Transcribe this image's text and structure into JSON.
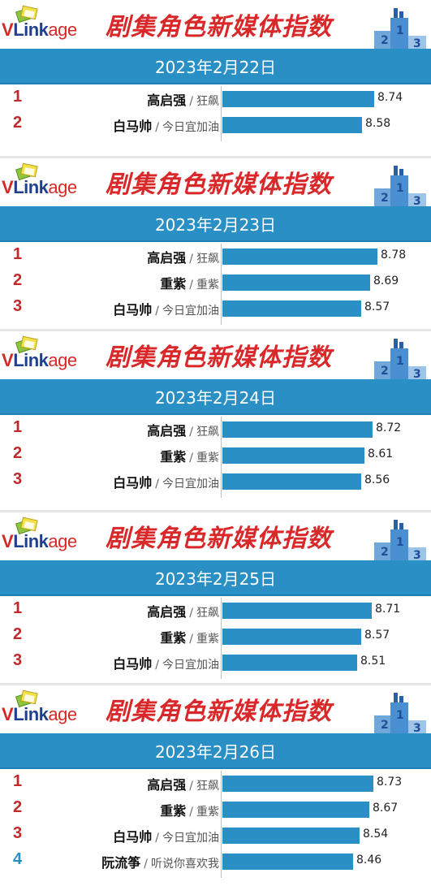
{
  "header": {
    "logo_v": "V",
    "logo_link": "Link",
    "logo_age": "age",
    "title": "剧集角色新媒体指数"
  },
  "colors": {
    "bar": "#2a8fc4",
    "date_bar": "#2a8fc4",
    "title": "#d9282a",
    "rank_red": "#c0282a",
    "rank_blue": "#2a8fc4"
  },
  "chart_data": [
    {
      "type": "bar",
      "orientation": "horizontal",
      "title": "剧集角色新媒体指数",
      "date": "2023年2月22日",
      "ranks": [
        "1",
        "2"
      ],
      "categories": [
        "高启强 / 狂飙",
        "白马帅 / 今日宜加油"
      ],
      "names": [
        "高启强",
        "白马帅"
      ],
      "shows": [
        "狂飙",
        "今日宜加油"
      ],
      "values": [
        8.74,
        8.58
      ],
      "value_labels": [
        "8.74",
        "8.58"
      ]
    },
    {
      "type": "bar",
      "orientation": "horizontal",
      "title": "剧集角色新媒体指数",
      "date": "2023年2月23日",
      "ranks": [
        "1",
        "2",
        "3"
      ],
      "categories": [
        "高启强 / 狂飙",
        "重紫 / 重紫",
        "白马帅 / 今日宜加油"
      ],
      "names": [
        "高启强",
        "重紫",
        "白马帅"
      ],
      "shows": [
        "狂飙",
        "重紫",
        "今日宜加油"
      ],
      "values": [
        8.78,
        8.69,
        8.57
      ],
      "value_labels": [
        "8.78",
        "8.69",
        "8.57"
      ]
    },
    {
      "type": "bar",
      "orientation": "horizontal",
      "title": "剧集角色新媒体指数",
      "date": "2023年2月24日",
      "ranks": [
        "1",
        "2",
        "3"
      ],
      "categories": [
        "高启强 / 狂飙",
        "重紫 / 重紫",
        "白马帅 / 今日宜加油"
      ],
      "names": [
        "高启强",
        "重紫",
        "白马帅"
      ],
      "shows": [
        "狂飙",
        "重紫",
        "今日宜加油"
      ],
      "values": [
        8.72,
        8.61,
        8.56
      ],
      "value_labels": [
        "8.72",
        "8.61",
        "8.56"
      ]
    },
    {
      "type": "bar",
      "orientation": "horizontal",
      "title": "剧集角色新媒体指数",
      "date": "2023年2月25日",
      "ranks": [
        "1",
        "2",
        "3"
      ],
      "categories": [
        "高启强 / 狂飙",
        "重紫 / 重紫",
        "白马帅 / 今日宜加油"
      ],
      "names": [
        "高启强",
        "重紫",
        "白马帅"
      ],
      "shows": [
        "狂飙",
        "重紫",
        "今日宜加油"
      ],
      "values": [
        8.71,
        8.57,
        8.51
      ],
      "value_labels": [
        "8.71",
        "8.57",
        "8.51"
      ]
    },
    {
      "type": "bar",
      "orientation": "horizontal",
      "title": "剧集角色新媒体指数",
      "date": "2023年2月26日",
      "ranks": [
        "1",
        "2",
        "3",
        "4"
      ],
      "categories": [
        "高启强 / 狂飙",
        "重紫 / 重紫",
        "白马帅 / 今日宜加油",
        "阮流筝 / 听说你喜欢我"
      ],
      "names": [
        "高启强",
        "重紫",
        "白马帅",
        "阮流筝"
      ],
      "shows": [
        "狂飙",
        "重紫",
        "今日宜加油",
        "听说你喜欢我"
      ],
      "values": [
        8.73,
        8.67,
        8.54,
        8.46
      ],
      "value_labels": [
        "8.73",
        "8.67",
        "8.54",
        "8.46"
      ]
    }
  ]
}
